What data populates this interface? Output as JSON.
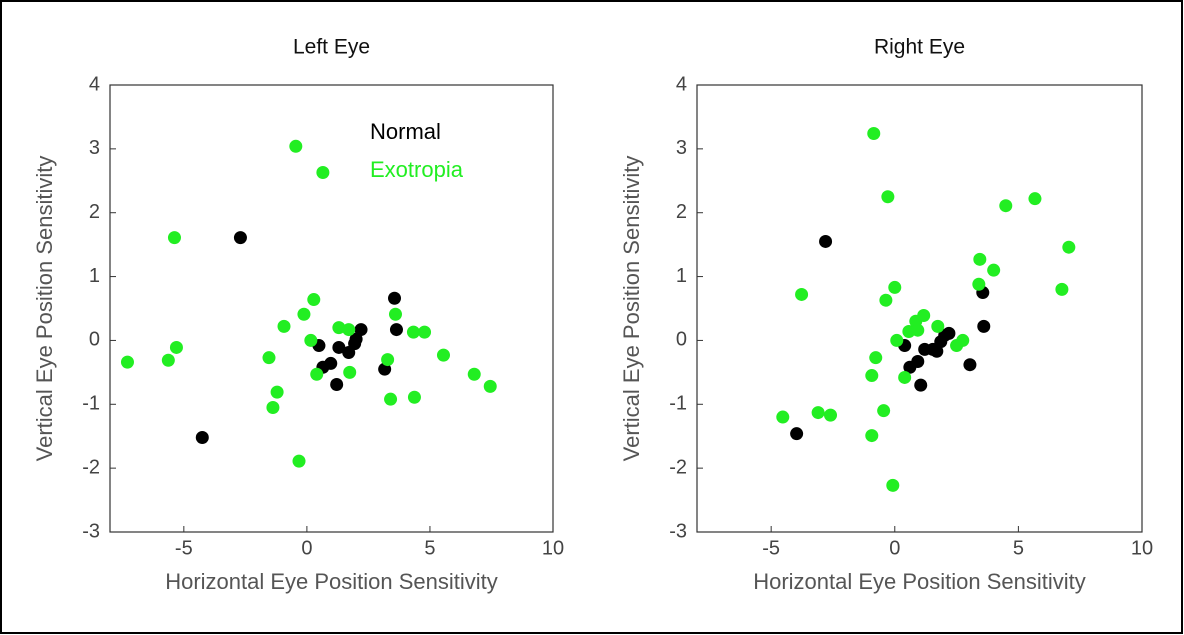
{
  "chart_data": [
    {
      "type": "scatter",
      "title": "Left Eye",
      "x_label": "Horizontal Eye Position Sensitivity",
      "y_label": "Vertical Eye Position Sensitivity",
      "xlim": [
        -8,
        10
      ],
      "ylim": [
        -3,
        4
      ],
      "xticks": [
        -5,
        0,
        5,
        10
      ],
      "yticks": [
        -3,
        -2,
        -1,
        0,
        1,
        2,
        3,
        4
      ],
      "legend": "upper right",
      "series": [
        {
          "name": "Normal",
          "color": "#000000",
          "x": [
            -2.7,
            -4.25,
            0.49,
            0.65,
            0.97,
            1.21,
            1.3,
            1.7,
            1.94,
            2.0,
            2.2,
            3.16,
            3.56,
            3.64
          ],
          "values": [
            1.61,
            -1.52,
            -0.08,
            -0.42,
            -0.36,
            -0.69,
            -0.11,
            -0.19,
            -0.05,
            0.02,
            0.17,
            -0.45,
            0.66,
            0.17
          ]
        },
        {
          "name": "Exotropia",
          "color": "#22ee22",
          "x": [
            -0.45,
            0.65,
            -5.38,
            -7.29,
            -5.63,
            -5.3,
            -1.54,
            -0.93,
            -1.21,
            -1.38,
            -0.32,
            -0.12,
            0.28,
            0.16,
            0.4,
            1.3,
            1.7,
            1.74,
            3.28,
            3.4,
            3.6,
            4.33,
            4.78,
            4.37,
            5.55,
            6.8,
            7.45
          ],
          "values": [
            3.04,
            2.63,
            1.61,
            -0.34,
            -0.31,
            -0.11,
            -0.27,
            0.22,
            -0.81,
            -1.05,
            -1.89,
            0.41,
            0.64,
            0.0,
            -0.53,
            0.2,
            0.17,
            -0.5,
            -0.3,
            -0.92,
            0.41,
            0.13,
            0.13,
            -0.89,
            -0.23,
            -0.53,
            -0.72
          ]
        }
      ]
    },
    {
      "type": "scatter",
      "title": "Right Eye",
      "x_label": "Horizontal Eye Position Sensitivity",
      "y_label": "Vertical Eye Position Sensitivity",
      "xlim": [
        -8,
        10
      ],
      "ylim": [
        -3,
        4
      ],
      "xticks": [
        -5,
        0,
        5,
        10
      ],
      "yticks": [
        -3,
        -2,
        -1,
        0,
        1,
        2,
        3,
        4
      ],
      "series": [
        {
          "color": "#000000",
          "x": [
            -2.8,
            -3.97,
            0.4,
            0.61,
            0.93,
            1.05,
            1.21,
            1.54,
            1.7,
            1.86,
            2.02,
            2.19,
            3.04,
            3.56,
            3.6
          ],
          "values": [
            1.55,
            -1.46,
            -0.08,
            -0.42,
            -0.33,
            -0.7,
            -0.14,
            -0.14,
            -0.17,
            -0.02,
            0.08,
            0.11,
            -0.38,
            0.75,
            0.22
          ]
        },
        {
          "color": "#22ee22",
          "x": [
            -0.85,
            -0.28,
            4.49,
            5.67,
            7.04,
            6.76,
            3.44,
            4.0,
            3.4,
            -3.77,
            0.0,
            -0.36,
            -0.77,
            -0.93,
            -0.45,
            -0.93,
            -0.08,
            -4.53,
            -3.1,
            -2.6,
            0.08,
            0.4,
            0.57,
            0.85,
            1.17,
            0.93,
            1.74,
            2.5,
            2.75
          ],
          "values": [
            3.24,
            2.25,
            2.11,
            2.22,
            1.46,
            0.8,
            1.27,
            1.1,
            0.88,
            0.72,
            0.83,
            0.63,
            -0.27,
            -0.55,
            -1.1,
            -1.49,
            -2.27,
            -1.2,
            -1.13,
            -1.17,
            0.0,
            -0.58,
            0.14,
            0.3,
            0.39,
            0.16,
            0.22,
            -0.08,
            0.0
          ]
        }
      ]
    }
  ]
}
